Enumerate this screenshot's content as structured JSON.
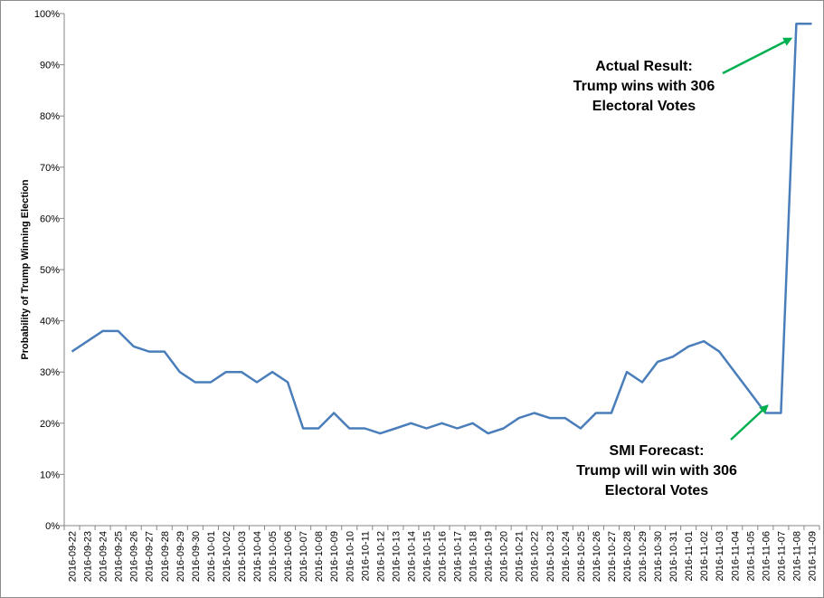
{
  "chart_data": {
    "type": "line",
    "ylabel": "Probability of Trump Winning Election",
    "xlabel": "",
    "title": "",
    "ylim": [
      0,
      100
    ],
    "yticks": [
      "0%",
      "10%",
      "20%",
      "30%",
      "40%",
      "50%",
      "60%",
      "70%",
      "80%",
      "90%",
      "100%"
    ],
    "grid": false,
    "line_color": "#4a7ebb",
    "arrow_color": "#00b050",
    "x": [
      "2016-09-22",
      "2016-09-23",
      "2016-09-24",
      "2016-09-25",
      "2016-09-26",
      "2016-09-27",
      "2016-09-28",
      "2016-09-29",
      "2016-09-30",
      "2016-10-01",
      "2016-10-02",
      "2016-10-03",
      "2016-10-04",
      "2016-10-05",
      "2016-10-06",
      "2016-10-07",
      "2016-10-08",
      "2016-10-09",
      "2016-10-10",
      "2016-10-11",
      "2016-10-12",
      "2016-10-13",
      "2016-10-14",
      "2016-10-15",
      "2016-10-16",
      "2016-10-17",
      "2016-10-18",
      "2016-10-19",
      "2016-10-20",
      "2016-10-21",
      "2016-10-22",
      "2016-10-23",
      "2016-10-24",
      "2016-10-25",
      "2016-10-26",
      "2016-10-27",
      "2016-10-28",
      "2016-10-29",
      "2016-10-30",
      "2016-10-31",
      "2016-11-01",
      "2016-11-02",
      "2016-11-03",
      "2016-11-04",
      "2016-11-05",
      "2016-11-06",
      "2016-11-07",
      "2016-11-08",
      "2016-11-09"
    ],
    "values": [
      34,
      36,
      38,
      38,
      35,
      34,
      34,
      30,
      28,
      28,
      30,
      30,
      28,
      30,
      28,
      19,
      19,
      22,
      19,
      19,
      18,
      19,
      20,
      19,
      20,
      19,
      20,
      18,
      19,
      21,
      22,
      21,
      21,
      19,
      22,
      22,
      30,
      28,
      32,
      33,
      35,
      36,
      34,
      30,
      26,
      22,
      22,
      98,
      98
    ],
    "annotations": [
      {
        "lines": [
          "Actual Result:",
          "Trump wins with 306",
          "Electoral Votes"
        ],
        "points_to": [
          "2016-11-08",
          96
        ]
      },
      {
        "lines": [
          "SMI Forecast:",
          "Trump will win with 306",
          "Electoral Votes"
        ],
        "points_to": [
          "2016-11-06",
          22
        ]
      }
    ]
  }
}
